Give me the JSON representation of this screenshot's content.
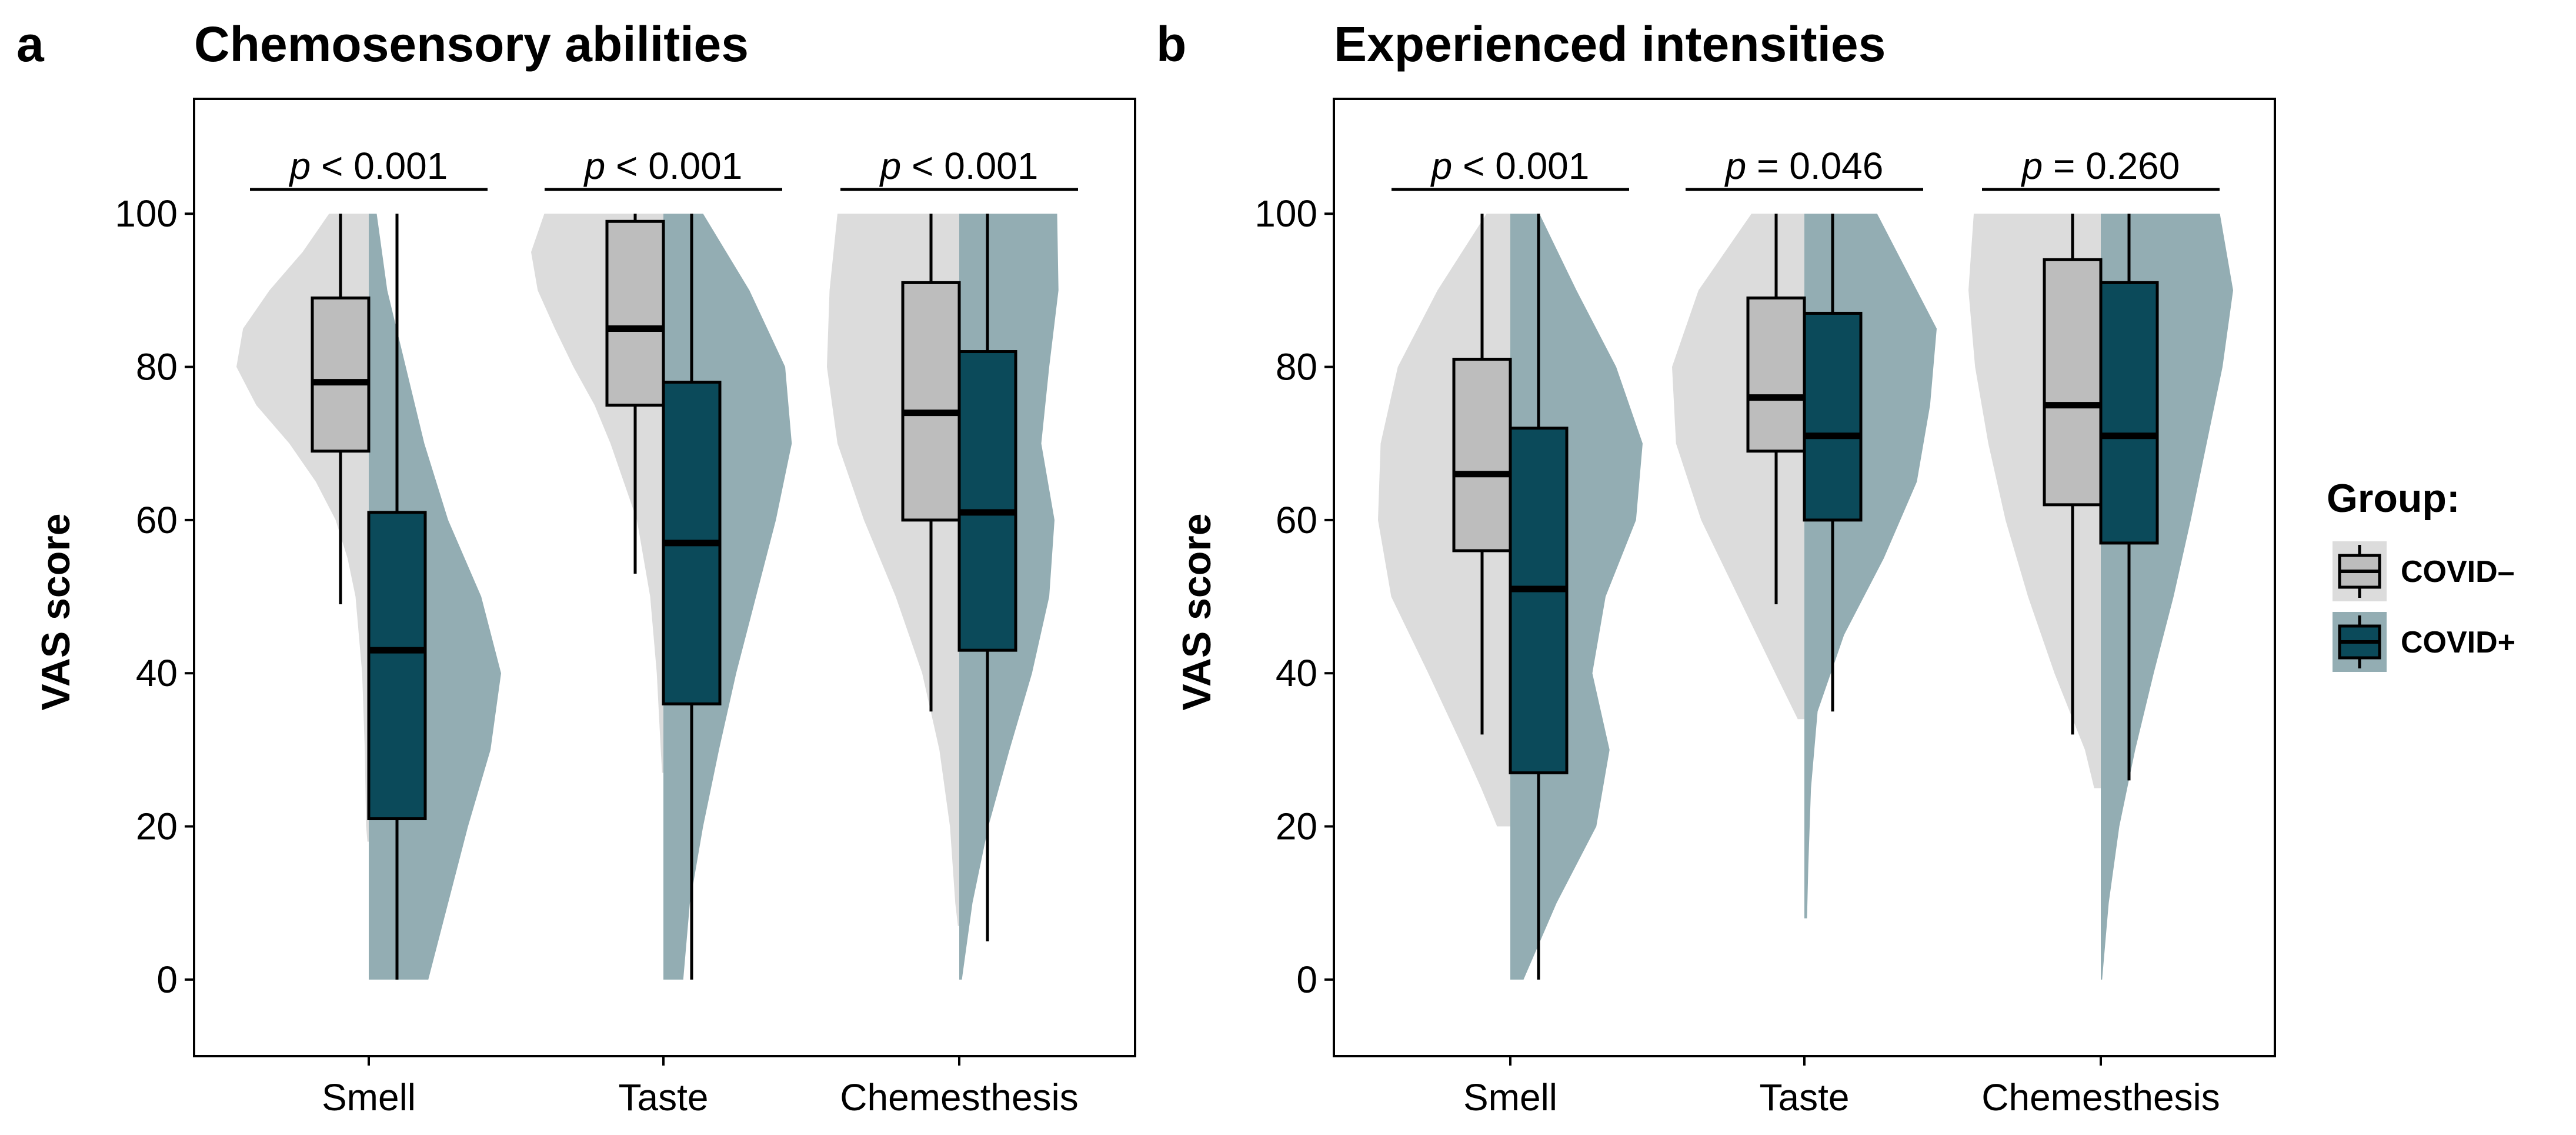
{
  "chart_data": [
    {
      "panel": "a",
      "type": "violin-box",
      "title": "Chemosensory abilities",
      "ylabel": "VAS score",
      "xlabel": "",
      "ylim": [
        -10,
        115
      ],
      "yticks": [
        0,
        20,
        40,
        60,
        80,
        100
      ],
      "categories": [
        "Smell",
        "Taste",
        "Chemesthesis"
      ],
      "pvalues": [
        {
          "symbol": "p",
          "text": " < 0.001"
        },
        {
          "symbol": "p",
          "text": " < 0.001"
        },
        {
          "symbol": "p",
          "text": " < 0.001"
        }
      ],
      "groups": [
        {
          "name": "COVID–",
          "box_color": "#bdbdbd",
          "violin_color": "#dcdcdc",
          "side": "left",
          "stats": [
            {
              "min": 49,
              "q1": 69,
              "median": 78,
              "q3": 89,
              "max": 100
            },
            {
              "min": 53,
              "q1": 75,
              "median": 85,
              "q3": 99,
              "max": 100
            },
            {
              "min": 35,
              "q1": 60,
              "median": 74,
              "q3": 91,
              "max": 100
            }
          ],
          "density": [
            {
              "y": [
                18,
                20,
                30,
                40,
                50,
                55,
                60,
                65,
                70,
                75,
                80,
                85,
                90,
                95,
                100
              ],
              "w": [
                0.01,
                0.02,
                0.03,
                0.05,
                0.1,
                0.16,
                0.25,
                0.4,
                0.6,
                0.85,
                1.0,
                0.95,
                0.75,
                0.5,
                0.3
              ]
            },
            {
              "y": [
                27,
                30,
                40,
                50,
                55,
                60,
                65,
                70,
                75,
                80,
                85,
                90,
                95,
                100
              ],
              "w": [
                0.01,
                0.02,
                0.05,
                0.1,
                0.15,
                0.2,
                0.3,
                0.4,
                0.52,
                0.68,
                0.82,
                0.95,
                1.0,
                0.9
              ]
            },
            {
              "y": [
                7,
                10,
                20,
                30,
                40,
                50,
                60,
                70,
                80,
                90,
                100
              ],
              "w": [
                0.01,
                0.03,
                0.07,
                0.15,
                0.28,
                0.48,
                0.72,
                0.92,
                1.0,
                0.98,
                0.92
              ]
            }
          ]
        },
        {
          "name": "COVID+",
          "box_color": "#0b4a5a",
          "violin_color": "#93adb3",
          "side": "right",
          "stats": [
            {
              "min": 0,
              "q1": 21,
              "median": 43,
              "q3": 61,
              "max": 100
            },
            {
              "min": 0,
              "q1": 36,
              "median": 57,
              "q3": 78,
              "max": 100
            },
            {
              "min": 5,
              "q1": 43,
              "median": 61,
              "q3": 82,
              "max": 100
            }
          ],
          "density": [
            {
              "y": [
                0,
                10,
                20,
                30,
                40,
                50,
                60,
                70,
                80,
                90,
                100
              ],
              "w": [
                0.45,
                0.6,
                0.75,
                0.92,
                1.0,
                0.85,
                0.6,
                0.42,
                0.28,
                0.14,
                0.06
              ]
            },
            {
              "y": [
                0,
                10,
                20,
                30,
                40,
                50,
                60,
                70,
                80,
                90,
                100
              ],
              "w": [
                0.15,
                0.2,
                0.3,
                0.42,
                0.55,
                0.7,
                0.85,
                0.97,
                0.92,
                0.65,
                0.3
              ]
            },
            {
              "y": [
                0,
                10,
                20,
                30,
                40,
                50,
                60,
                70,
                80,
                90,
                100
              ],
              "w": [
                0.02,
                0.1,
                0.22,
                0.38,
                0.55,
                0.68,
                0.72,
                0.62,
                0.68,
                0.75,
                0.74
              ]
            }
          ]
        }
      ]
    },
    {
      "panel": "b",
      "type": "violin-box",
      "title": "Experienced intensities",
      "ylabel": "VAS score",
      "xlabel": "",
      "ylim": [
        -10,
        115
      ],
      "yticks": [
        0,
        20,
        40,
        60,
        80,
        100
      ],
      "categories": [
        "Smell",
        "Taste",
        "Chemesthesis"
      ],
      "pvalues": [
        {
          "symbol": "p",
          "text": " < 0.001"
        },
        {
          "symbol": "p",
          "text": " = 0.046"
        },
        {
          "symbol": "p",
          "text": " = 0.260"
        }
      ],
      "groups": [
        {
          "name": "COVID–",
          "box_color": "#bdbdbd",
          "violin_color": "#dcdcdc",
          "side": "left",
          "stats": [
            {
              "min": 32,
              "q1": 56,
              "median": 66,
              "q3": 81,
              "max": 100
            },
            {
              "min": 49,
              "q1": 69,
              "median": 76,
              "q3": 89,
              "max": 100
            },
            {
              "min": 32,
              "q1": 62,
              "median": 75,
              "q3": 94,
              "max": 100
            }
          ],
          "density": [
            {
              "y": [
                20,
                25,
                30,
                40,
                50,
                60,
                70,
                80,
                90,
                100
              ],
              "w": [
                0.1,
                0.22,
                0.35,
                0.62,
                0.9,
                1.0,
                0.98,
                0.85,
                0.55,
                0.18
              ]
            },
            {
              "y": [
                34,
                40,
                50,
                60,
                70,
                80,
                90,
                100
              ],
              "w": [
                0.05,
                0.22,
                0.5,
                0.78,
                0.97,
                1.0,
                0.8,
                0.4
              ]
            },
            {
              "y": [
                25,
                30,
                40,
                50,
                60,
                70,
                80,
                90,
                100
              ],
              "w": [
                0.05,
                0.12,
                0.35,
                0.55,
                0.72,
                0.85,
                0.95,
                1.0,
                0.96
              ]
            }
          ]
        },
        {
          "name": "COVID+",
          "box_color": "#0b4a5a",
          "violin_color": "#93adb3",
          "side": "right",
          "stats": [
            {
              "min": 0,
              "q1": 27,
              "median": 51,
              "q3": 72,
              "max": 100
            },
            {
              "min": 35,
              "q1": 60,
              "median": 71,
              "q3": 87,
              "max": 100
            },
            {
              "min": 26,
              "q1": 57,
              "median": 71,
              "q3": 91,
              "max": 100
            }
          ],
          "density": [
            {
              "y": [
                0,
                10,
                20,
                30,
                40,
                50,
                60,
                70,
                80,
                90,
                100
              ],
              "w": [
                0.1,
                0.35,
                0.65,
                0.75,
                0.62,
                0.72,
                0.95,
                1.0,
                0.8,
                0.5,
                0.22
              ]
            },
            {
              "y": [
                8,
                15,
                25,
                35,
                45,
                55,
                65,
                75,
                85,
                95,
                100
              ],
              "w": [
                0.02,
                0.03,
                0.05,
                0.1,
                0.3,
                0.6,
                0.85,
                0.95,
                1.0,
                0.7,
                0.55
              ]
            },
            {
              "y": [
                0,
                10,
                20,
                30,
                40,
                50,
                60,
                70,
                80,
                90,
                100
              ],
              "w": [
                0.01,
                0.06,
                0.14,
                0.26,
                0.4,
                0.55,
                0.68,
                0.8,
                0.92,
                1.0,
                0.9
              ]
            }
          ]
        }
      ]
    }
  ],
  "legend": {
    "title": "Group:",
    "items": [
      "COVID–",
      "COVID+"
    ]
  },
  "colors": {
    "covid_neg_box": "#bdbdbd",
    "covid_neg_violin": "#dcdcdc",
    "covid_pos_box": "#0b4a5a",
    "covid_pos_violin": "#93adb3"
  }
}
